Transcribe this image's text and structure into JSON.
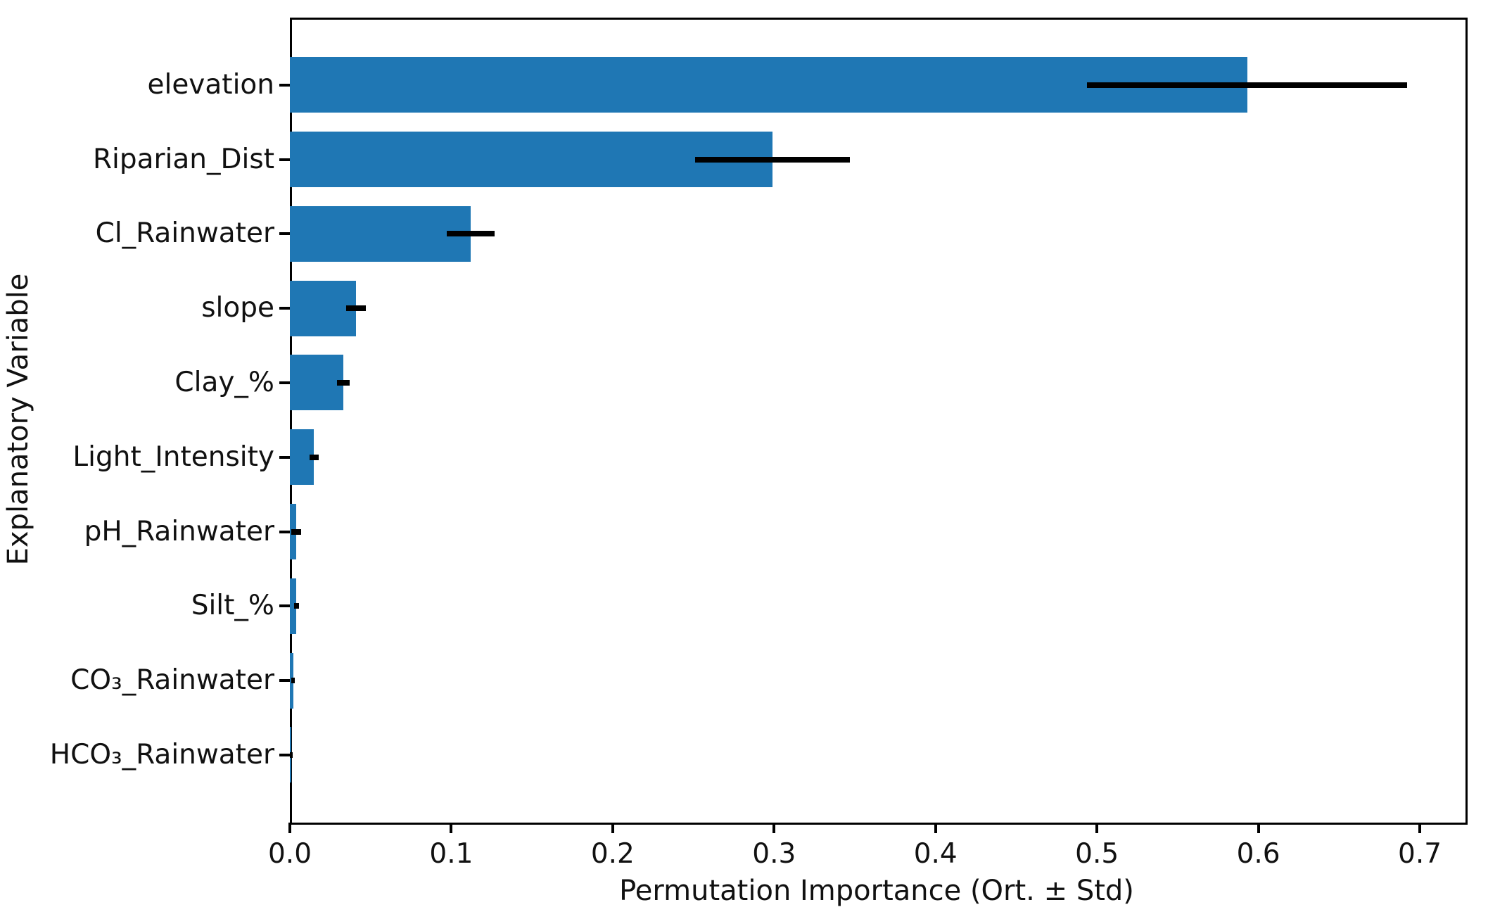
{
  "chart_data": {
    "type": "bar",
    "orientation": "horizontal",
    "title": "",
    "xlabel": "Permutation Importance (Ort. ± Std)",
    "ylabel": "Explanatory Variable",
    "categories": [
      "elevation",
      "Riparian_Dist",
      "Cl_Rainwater",
      "slope",
      "Clay_%",
      "Light_Intensity",
      "pH_Rainwater",
      "Silt_%",
      "CO₃_Rainwater",
      "HCO₃_Rainwater"
    ],
    "values": [
      0.593,
      0.299,
      0.112,
      0.041,
      0.033,
      0.015,
      0.004,
      0.004,
      0.002,
      0.001
    ],
    "errors": [
      0.099,
      0.048,
      0.015,
      0.006,
      0.004,
      0.003,
      0.003,
      0.0015,
      0.001,
      0.0008
    ],
    "xlim": [
      0,
      0.727
    ],
    "xticks": [
      0.0,
      0.1,
      0.2,
      0.3,
      0.4,
      0.5,
      0.6,
      0.7
    ],
    "xtick_labels": [
      "0.0",
      "0.1",
      "0.2",
      "0.3",
      "0.4",
      "0.5",
      "0.6",
      "0.7"
    ],
    "bar_color": "#1f77b4",
    "error_bar_color": "#000000",
    "axis_color": "#000000",
    "grid": false,
    "legend": null
  }
}
